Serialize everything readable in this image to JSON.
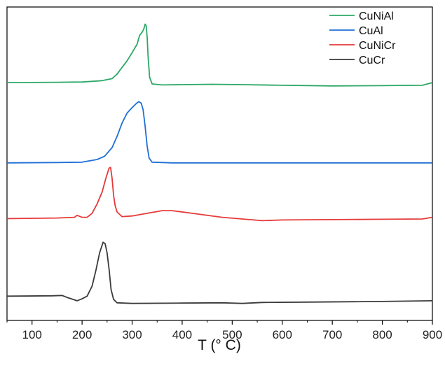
{
  "chart_data": {
    "type": "line",
    "title": "",
    "xlabel": "T (° C)",
    "ylabel": "",
    "xlim": [
      50,
      900
    ],
    "x_ticks": [
      100,
      200,
      300,
      400,
      500,
      600,
      700,
      800,
      900
    ],
    "x_tick_labels": [
      "100",
      "200",
      "300",
      "400",
      "500",
      "600",
      "700",
      "800",
      "900"
    ],
    "y_axis_visible_ticks": false,
    "y_units": "arbitrary (stacked, offset)",
    "grid": false,
    "legend_position": "top-right",
    "series": [
      {
        "name": "CuNiAl",
        "color": "#2ca866",
        "offset": 3,
        "points": [
          [
            50,
            0.12
          ],
          [
            150,
            0.125
          ],
          [
            200,
            0.13
          ],
          [
            240,
            0.15
          ],
          [
            260,
            0.18
          ],
          [
            270,
            0.25
          ],
          [
            280,
            0.35
          ],
          [
            290,
            0.45
          ],
          [
            300,
            0.57
          ],
          [
            310,
            0.7
          ],
          [
            315,
            0.83
          ],
          [
            320,
            0.88
          ],
          [
            323,
            0.92
          ],
          [
            326,
            1.0
          ],
          [
            328,
            0.98
          ],
          [
            330,
            0.8
          ],
          [
            332,
            0.5
          ],
          [
            335,
            0.2
          ],
          [
            340,
            0.1
          ],
          [
            360,
            0.085
          ],
          [
            400,
            0.09
          ],
          [
            460,
            0.095
          ],
          [
            520,
            0.09
          ],
          [
            600,
            0.08
          ],
          [
            700,
            0.07
          ],
          [
            800,
            0.075
          ],
          [
            880,
            0.08
          ],
          [
            900,
            0.12
          ]
        ]
      },
      {
        "name": "CuAl",
        "color": "#1f6fd6",
        "offset": 2,
        "points": [
          [
            50,
            0.05
          ],
          [
            150,
            0.055
          ],
          [
            200,
            0.06
          ],
          [
            215,
            0.08
          ],
          [
            230,
            0.1
          ],
          [
            245,
            0.15
          ],
          [
            260,
            0.28
          ],
          [
            270,
            0.45
          ],
          [
            280,
            0.65
          ],
          [
            290,
            0.8
          ],
          [
            300,
            0.88
          ],
          [
            308,
            0.94
          ],
          [
            313,
            0.97
          ],
          [
            318,
            0.95
          ],
          [
            322,
            0.85
          ],
          [
            326,
            0.6
          ],
          [
            330,
            0.3
          ],
          [
            334,
            0.12
          ],
          [
            340,
            0.06
          ],
          [
            380,
            0.05
          ],
          [
            500,
            0.05
          ],
          [
            700,
            0.05
          ],
          [
            900,
            0.05
          ]
        ]
      },
      {
        "name": "CuNiCr",
        "color": "#e53a3a",
        "offset": 1,
        "points": [
          [
            50,
            0.2
          ],
          [
            150,
            0.21
          ],
          [
            185,
            0.22
          ],
          [
            190,
            0.25
          ],
          [
            200,
            0.22
          ],
          [
            210,
            0.22
          ],
          [
            220,
            0.28
          ],
          [
            230,
            0.42
          ],
          [
            240,
            0.6
          ],
          [
            248,
            0.82
          ],
          [
            254,
            0.96
          ],
          [
            257,
            0.97
          ],
          [
            260,
            0.8
          ],
          [
            263,
            0.55
          ],
          [
            266,
            0.4
          ],
          [
            270,
            0.3
          ],
          [
            280,
            0.23
          ],
          [
            300,
            0.24
          ],
          [
            330,
            0.28
          ],
          [
            360,
            0.32
          ],
          [
            380,
            0.32
          ],
          [
            420,
            0.28
          ],
          [
            480,
            0.22
          ],
          [
            560,
            0.17
          ],
          [
            600,
            0.18
          ],
          [
            700,
            0.185
          ],
          [
            800,
            0.19
          ],
          [
            880,
            0.195
          ],
          [
            900,
            0.22
          ]
        ]
      },
      {
        "name": "CuCr",
        "color": "#3a3a3a",
        "offset": 0,
        "points": [
          [
            50,
            0.15
          ],
          [
            140,
            0.155
          ],
          [
            160,
            0.16
          ],
          [
            170,
            0.13
          ],
          [
            190,
            0.08
          ],
          [
            200,
            0.11
          ],
          [
            210,
            0.15
          ],
          [
            220,
            0.3
          ],
          [
            228,
            0.55
          ],
          [
            235,
            0.8
          ],
          [
            242,
            0.96
          ],
          [
            246,
            0.94
          ],
          [
            250,
            0.8
          ],
          [
            254,
            0.55
          ],
          [
            258,
            0.25
          ],
          [
            263,
            0.1
          ],
          [
            270,
            0.05
          ],
          [
            300,
            0.04
          ],
          [
            400,
            0.045
          ],
          [
            480,
            0.05
          ],
          [
            520,
            0.04
          ],
          [
            560,
            0.055
          ],
          [
            650,
            0.06
          ],
          [
            800,
            0.07
          ],
          [
            900,
            0.08
          ]
        ]
      }
    ]
  }
}
